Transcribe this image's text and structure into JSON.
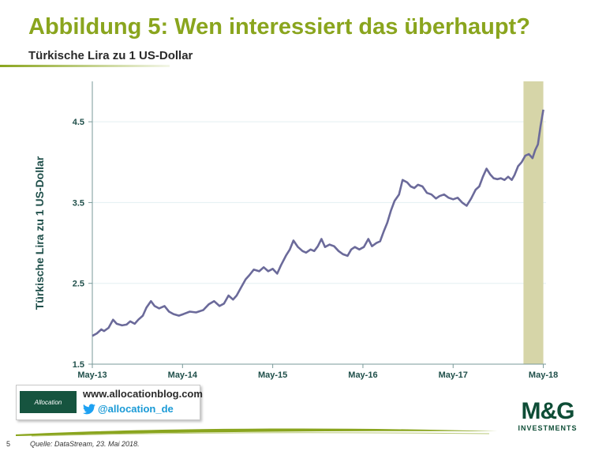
{
  "header": {
    "title": "Abbildung 5: Wen interessiert das überhaupt?",
    "subtitle": "Türkische Lira zu 1 US-Dollar"
  },
  "colors": {
    "title": "#8aa51e",
    "line": "#6b6a9a",
    "highlight": "#d6d5a8",
    "axis": "#7a9a9a",
    "grid": "#e3eff2"
  },
  "chart_data": {
    "type": "line",
    "ylabel": "Türkische Lira zu 1 US-Dollar",
    "ylim": [
      1.5,
      5.0
    ],
    "yticks": [
      "1.5",
      "2.5",
      "3.5",
      "4.5"
    ],
    "xlim": [
      2013.37,
      2018.4
    ],
    "xticks": [
      {
        "label": "May-13",
        "x": 2013.37
      },
      {
        "label": "May-14",
        "x": 2014.37
      },
      {
        "label": "May-15",
        "x": 2015.37
      },
      {
        "label": "May-16",
        "x": 2016.37
      },
      {
        "label": "May-17",
        "x": 2017.37
      },
      {
        "label": "May-18",
        "x": 2018.37
      }
    ],
    "grid": "horizontal",
    "highlight_band": [
      2018.15,
      2018.37
    ],
    "series": [
      {
        "values": [
          [
            2013.37,
            1.85
          ],
          [
            2013.42,
            1.88
          ],
          [
            2013.47,
            1.93
          ],
          [
            2013.5,
            1.91
          ],
          [
            2013.55,
            1.95
          ],
          [
            2013.6,
            2.05
          ],
          [
            2013.64,
            2.0
          ],
          [
            2013.7,
            1.98
          ],
          [
            2013.75,
            1.99
          ],
          [
            2013.79,
            2.03
          ],
          [
            2013.84,
            2.0
          ],
          [
            2013.88,
            2.05
          ],
          [
            2013.93,
            2.1
          ],
          [
            2013.97,
            2.2
          ],
          [
            2014.02,
            2.28
          ],
          [
            2014.06,
            2.22
          ],
          [
            2014.11,
            2.19
          ],
          [
            2014.17,
            2.22
          ],
          [
            2014.22,
            2.15
          ],
          [
            2014.27,
            2.12
          ],
          [
            2014.33,
            2.1
          ],
          [
            2014.38,
            2.12
          ],
          [
            2014.45,
            2.15
          ],
          [
            2014.52,
            2.14
          ],
          [
            2014.6,
            2.17
          ],
          [
            2014.66,
            2.24
          ],
          [
            2014.72,
            2.28
          ],
          [
            2014.78,
            2.22
          ],
          [
            2014.83,
            2.25
          ],
          [
            2014.88,
            2.35
          ],
          [
            2014.93,
            2.3
          ],
          [
            2014.97,
            2.35
          ],
          [
            2015.02,
            2.45
          ],
          [
            2015.07,
            2.55
          ],
          [
            2015.11,
            2.6
          ],
          [
            2015.16,
            2.67
          ],
          [
            2015.22,
            2.65
          ],
          [
            2015.27,
            2.7
          ],
          [
            2015.32,
            2.65
          ],
          [
            2015.37,
            2.68
          ],
          [
            2015.42,
            2.62
          ],
          [
            2015.46,
            2.72
          ],
          [
            2015.52,
            2.85
          ],
          [
            2015.56,
            2.92
          ],
          [
            2015.6,
            3.03
          ],
          [
            2015.65,
            2.95
          ],
          [
            2015.7,
            2.9
          ],
          [
            2015.74,
            2.88
          ],
          [
            2015.79,
            2.92
          ],
          [
            2015.83,
            2.9
          ],
          [
            2015.87,
            2.96
          ],
          [
            2015.91,
            3.05
          ],
          [
            2015.95,
            2.95
          ],
          [
            2016.0,
            2.98
          ],
          [
            2016.05,
            2.96
          ],
          [
            2016.1,
            2.9
          ],
          [
            2016.15,
            2.86
          ],
          [
            2016.2,
            2.84
          ],
          [
            2016.24,
            2.92
          ],
          [
            2016.28,
            2.95
          ],
          [
            2016.33,
            2.92
          ],
          [
            2016.38,
            2.95
          ],
          [
            2016.43,
            3.05
          ],
          [
            2016.47,
            2.96
          ],
          [
            2016.52,
            3.0
          ],
          [
            2016.56,
            3.02
          ],
          [
            2016.6,
            3.14
          ],
          [
            2016.64,
            3.25
          ],
          [
            2016.68,
            3.4
          ],
          [
            2016.72,
            3.52
          ],
          [
            2016.77,
            3.6
          ],
          [
            2016.81,
            3.78
          ],
          [
            2016.86,
            3.75
          ],
          [
            2016.9,
            3.7
          ],
          [
            2016.94,
            3.68
          ],
          [
            2016.98,
            3.72
          ],
          [
            2017.03,
            3.7
          ],
          [
            2017.08,
            3.62
          ],
          [
            2017.13,
            3.6
          ],
          [
            2017.18,
            3.55
          ],
          [
            2017.22,
            3.58
          ],
          [
            2017.27,
            3.6
          ],
          [
            2017.32,
            3.56
          ],
          [
            2017.37,
            3.54
          ],
          [
            2017.42,
            3.56
          ],
          [
            2017.47,
            3.5
          ],
          [
            2017.52,
            3.46
          ],
          [
            2017.57,
            3.55
          ],
          [
            2017.62,
            3.66
          ],
          [
            2017.66,
            3.7
          ],
          [
            2017.7,
            3.82
          ],
          [
            2017.74,
            3.92
          ],
          [
            2017.78,
            3.85
          ],
          [
            2017.82,
            3.8
          ],
          [
            2017.86,
            3.79
          ],
          [
            2017.9,
            3.8
          ],
          [
            2017.94,
            3.78
          ],
          [
            2017.98,
            3.82
          ],
          [
            2018.02,
            3.78
          ],
          [
            2018.05,
            3.84
          ],
          [
            2018.09,
            3.95
          ],
          [
            2018.13,
            4.0
          ],
          [
            2018.17,
            4.08
          ],
          [
            2018.21,
            4.1
          ],
          [
            2018.25,
            4.05
          ],
          [
            2018.28,
            4.15
          ],
          [
            2018.31,
            4.22
          ],
          [
            2018.34,
            4.45
          ],
          [
            2018.37,
            4.65
          ]
        ]
      }
    ]
  },
  "footer": {
    "logo_text": "Allocation",
    "url": "www.allocationblog.com",
    "handle": "@allocation_de",
    "page_number": "5",
    "source": "Quelle: DataStream, 23. Mai 2018.",
    "brand": "M&G",
    "brand_sub": "INVESTMENTS"
  }
}
